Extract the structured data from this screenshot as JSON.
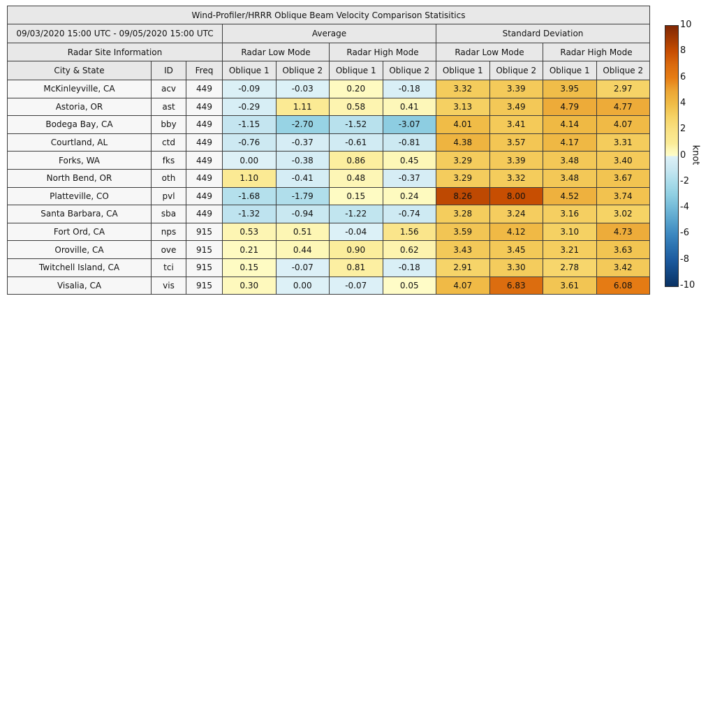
{
  "chart_data": {
    "type": "table",
    "title": "Wind-Profiler/HRRR Oblique Beam Velocity Comparison Statisitics",
    "date_range": "09/03/2020 15:00 UTC - 09/05/2020 15:00 UTC",
    "header": {
      "site_group": "Radar Site Information",
      "groups": [
        "Average",
        "Standard Deviation"
      ],
      "modes": [
        "Radar Low Mode",
        "Radar High Mode",
        "Radar Low Mode",
        "Radar High Mode"
      ],
      "site_columns": [
        "City & State",
        "ID",
        "Freq"
      ],
      "oblique_columns": [
        "Oblique 1",
        "Oblique 2",
        "Oblique 1",
        "Oblique 2",
        "Oblique 1",
        "Oblique 2",
        "Oblique 1",
        "Oblique 2"
      ]
    },
    "rows": [
      {
        "city": "McKinleyville, CA",
        "id": "acv",
        "freq": "449",
        "values": [
          -0.09,
          -0.03,
          0.2,
          -0.18,
          3.32,
          3.39,
          3.95,
          2.97
        ]
      },
      {
        "city": "Astoria, OR",
        "id": "ast",
        "freq": "449",
        "values": [
          -0.29,
          1.11,
          0.58,
          0.41,
          3.13,
          3.49,
          4.79,
          4.77
        ]
      },
      {
        "city": "Bodega Bay, CA",
        "id": "bby",
        "freq": "449",
        "values": [
          -1.15,
          -2.7,
          -1.52,
          -3.07,
          4.01,
          3.41,
          4.14,
          4.07
        ]
      },
      {
        "city": "Courtland, AL",
        "id": "ctd",
        "freq": "449",
        "values": [
          -0.76,
          -0.37,
          -0.61,
          -0.81,
          4.38,
          3.57,
          4.17,
          3.31
        ]
      },
      {
        "city": "Forks, WA",
        "id": "fks",
        "freq": "449",
        "values": [
          0.0,
          -0.38,
          0.86,
          0.45,
          3.29,
          3.39,
          3.48,
          3.4
        ]
      },
      {
        "city": "North Bend, OR",
        "id": "oth",
        "freq": "449",
        "values": [
          1.1,
          -0.41,
          0.48,
          -0.37,
          3.29,
          3.32,
          3.48,
          3.67
        ]
      },
      {
        "city": "Platteville, CO",
        "id": "pvl",
        "freq": "449",
        "values": [
          -1.68,
          -1.79,
          0.15,
          0.24,
          8.26,
          8.0,
          4.52,
          3.74
        ]
      },
      {
        "city": "Santa Barbara, CA",
        "id": "sba",
        "freq": "449",
        "values": [
          -1.32,
          -0.94,
          -1.22,
          -0.74,
          3.28,
          3.24,
          3.16,
          3.02
        ]
      },
      {
        "city": "Fort Ord, CA",
        "id": "nps",
        "freq": "915",
        "values": [
          0.53,
          0.51,
          -0.04,
          1.56,
          3.59,
          4.12,
          3.1,
          4.73
        ]
      },
      {
        "city": "Oroville, CA",
        "id": "ove",
        "freq": "915",
        "values": [
          0.21,
          0.44,
          0.9,
          0.62,
          3.43,
          3.45,
          3.21,
          3.63
        ]
      },
      {
        "city": "Twitchell Island, CA",
        "id": "tci",
        "freq": "915",
        "values": [
          0.15,
          -0.07,
          0.81,
          -0.18,
          2.91,
          3.3,
          2.78,
          3.42
        ]
      },
      {
        "city": "Visalia, CA",
        "id": "vis",
        "freq": "915",
        "values": [
          0.3,
          0.0,
          -0.07,
          0.05,
          4.07,
          6.83,
          3.61,
          6.08
        ]
      }
    ],
    "colorbar": {
      "label": "knot",
      "min": -10,
      "max": 10,
      "ticks": [
        10,
        8,
        6,
        4,
        2,
        0,
        -2,
        -4,
        -6,
        -8,
        -10
      ],
      "positive_stops": [
        [
          0,
          "#fffdc9"
        ],
        [
          0.5,
          "#fdf6b5"
        ],
        [
          1,
          "#fbeb96"
        ],
        [
          2,
          "#f9e183"
        ],
        [
          3,
          "#f6d366"
        ],
        [
          4,
          "#f0bc47"
        ],
        [
          5,
          "#eca635"
        ],
        [
          6,
          "#e67d15"
        ],
        [
          7,
          "#da6a0e"
        ],
        [
          8,
          "#c74e02"
        ],
        [
          9,
          "#a33a03"
        ],
        [
          10,
          "#7f2704"
        ]
      ],
      "negative_stops": [
        [
          0,
          "#ddf1f7"
        ],
        [
          0.5,
          "#d3ecf4"
        ],
        [
          1,
          "#c8e7f1"
        ],
        [
          2,
          "#aadcea"
        ],
        [
          3,
          "#8fcfe2"
        ],
        [
          4,
          "#72b9d8"
        ],
        [
          5,
          "#57a2cc"
        ],
        [
          6,
          "#3c88c0"
        ],
        [
          7,
          "#2b71af"
        ],
        [
          8,
          "#1c5a9e"
        ],
        [
          9,
          "#124681"
        ],
        [
          10,
          "#0a3263"
        ]
      ]
    },
    "colors": {
      "header_bg": "#e8e8e8",
      "label_cell_bg": "#f7f7f7",
      "border": "#3c3c3c",
      "text": "#111111"
    }
  }
}
